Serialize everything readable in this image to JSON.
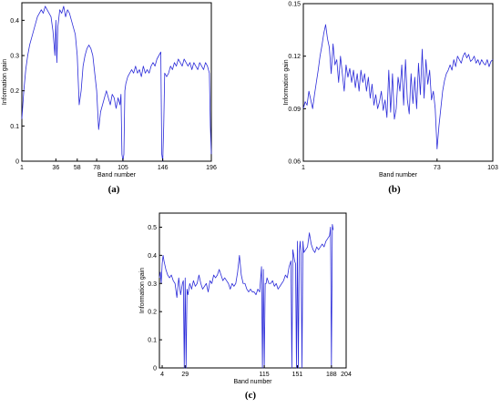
{
  "chart_data": [
    {
      "type": "line",
      "panel_label": "(a)",
      "xlabel": "Band number",
      "ylabel": "Information gain",
      "xlim": [
        1,
        196
      ],
      "ylim": [
        0,
        0.45
      ],
      "xticks": [
        1,
        36,
        58,
        78,
        105,
        146,
        196
      ],
      "yticks": [
        0,
        0.1,
        0.2,
        0.3,
        0.4
      ],
      "ytick_labels": [
        "0",
        "0.1",
        "0.2",
        "0.3",
        "0.4"
      ],
      "grid": false,
      "color": "#2b2bd9",
      "x": [
        1,
        3,
        5,
        7,
        9,
        11,
        13,
        15,
        17,
        19,
        21,
        23,
        25,
        27,
        29,
        31,
        33,
        35,
        36,
        37,
        38,
        40,
        42,
        44,
        46,
        48,
        50,
        52,
        54,
        56,
        58,
        60,
        62,
        64,
        66,
        68,
        70,
        72,
        74,
        76,
        78,
        80,
        82,
        84,
        86,
        88,
        90,
        92,
        94,
        96,
        98,
        100,
        102,
        103,
        104,
        105,
        106,
        107,
        108,
        110,
        112,
        114,
        116,
        118,
        120,
        122,
        124,
        126,
        128,
        130,
        132,
        134,
        136,
        138,
        140,
        142,
        144,
        145,
        146,
        147,
        148,
        150,
        152,
        154,
        156,
        158,
        160,
        162,
        164,
        166,
        168,
        170,
        172,
        174,
        176,
        178,
        180,
        182,
        184,
        186,
        188,
        190,
        192,
        194,
        195,
        196
      ],
      "values": [
        0.12,
        0.2,
        0.26,
        0.3,
        0.33,
        0.35,
        0.37,
        0.39,
        0.41,
        0.42,
        0.43,
        0.42,
        0.44,
        0.43,
        0.42,
        0.41,
        0.37,
        0.3,
        0.4,
        0.28,
        0.38,
        0.43,
        0.42,
        0.44,
        0.41,
        0.43,
        0.42,
        0.4,
        0.38,
        0.36,
        0.3,
        0.16,
        0.2,
        0.27,
        0.3,
        0.32,
        0.33,
        0.32,
        0.3,
        0.25,
        0.2,
        0.09,
        0.14,
        0.16,
        0.18,
        0.2,
        0.18,
        0.16,
        0.19,
        0.18,
        0.15,
        0.18,
        0.16,
        0.19,
        0.02,
        0.0,
        0.02,
        0.2,
        0.22,
        0.24,
        0.25,
        0.26,
        0.25,
        0.27,
        0.25,
        0.26,
        0.24,
        0.27,
        0.25,
        0.26,
        0.25,
        0.27,
        0.28,
        0.27,
        0.29,
        0.3,
        0.31,
        0.02,
        0.0,
        0.1,
        0.25,
        0.24,
        0.25,
        0.27,
        0.26,
        0.28,
        0.27,
        0.29,
        0.28,
        0.27,
        0.29,
        0.28,
        0.27,
        0.28,
        0.26,
        0.28,
        0.27,
        0.26,
        0.28,
        0.27,
        0.26,
        0.28,
        0.27,
        0.25,
        0.1,
        0.02
      ]
    },
    {
      "type": "line",
      "panel_label": "(b)",
      "xlabel": "Band number",
      "ylabel": "Information gain",
      "xlim": [
        1,
        103
      ],
      "ylim": [
        0.06,
        0.15
      ],
      "xticks": [
        1,
        73,
        103
      ],
      "yticks": [
        0.06,
        0.09,
        0.12,
        0.15
      ],
      "ytick_labels": [
        "0.06",
        "0.09",
        "0.12",
        "0.15"
      ],
      "grid": false,
      "color": "#2b2bd9",
      "x": [
        1,
        2,
        3,
        4,
        5,
        6,
        7,
        8,
        9,
        10,
        11,
        12,
        13,
        14,
        15,
        16,
        17,
        18,
        19,
        20,
        21,
        22,
        23,
        24,
        25,
        26,
        27,
        28,
        29,
        30,
        31,
        32,
        33,
        34,
        35,
        36,
        37,
        38,
        39,
        40,
        41,
        42,
        43,
        44,
        45,
        46,
        47,
        48,
        49,
        50,
        51,
        52,
        53,
        54,
        55,
        56,
        57,
        58,
        59,
        60,
        61,
        62,
        63,
        64,
        65,
        66,
        67,
        68,
        69,
        70,
        71,
        72,
        73,
        74,
        75,
        76,
        77,
        78,
        79,
        80,
        81,
        82,
        83,
        84,
        85,
        86,
        87,
        88,
        89,
        90,
        91,
        92,
        93,
        94,
        95,
        96,
        97,
        98,
        99,
        100,
        101,
        102,
        103
      ],
      "values": [
        0.09,
        0.094,
        0.092,
        0.1,
        0.095,
        0.09,
        0.098,
        0.105,
        0.112,
        0.12,
        0.126,
        0.133,
        0.138,
        0.13,
        0.125,
        0.11,
        0.127,
        0.115,
        0.118,
        0.105,
        0.12,
        0.11,
        0.1,
        0.115,
        0.108,
        0.113,
        0.105,
        0.112,
        0.102,
        0.11,
        0.1,
        0.112,
        0.105,
        0.11,
        0.1,
        0.108,
        0.096,
        0.104,
        0.092,
        0.098,
        0.09,
        0.094,
        0.1,
        0.089,
        0.095,
        0.085,
        0.112,
        0.088,
        0.11,
        0.084,
        0.09,
        0.108,
        0.1,
        0.115,
        0.092,
        0.118,
        0.095,
        0.087,
        0.11,
        0.093,
        0.108,
        0.09,
        0.116,
        0.098,
        0.124,
        0.096,
        0.118,
        0.104,
        0.112,
        0.095,
        0.1,
        0.09,
        0.067,
        0.08,
        0.09,
        0.1,
        0.106,
        0.11,
        0.112,
        0.115,
        0.112,
        0.118,
        0.114,
        0.12,
        0.118,
        0.116,
        0.12,
        0.122,
        0.119,
        0.121,
        0.117,
        0.118,
        0.12,
        0.116,
        0.118,
        0.115,
        0.118,
        0.116,
        0.115,
        0.118,
        0.114,
        0.117,
        0.118
      ]
    },
    {
      "type": "line",
      "panel_label": "(c)",
      "xlabel": "Band number",
      "ylabel": "Information gain",
      "xlim": [
        1,
        204
      ],
      "ylim": [
        0,
        0.55
      ],
      "xticks": [
        4,
        29,
        115,
        151,
        188,
        204
      ],
      "yticks": [
        0,
        0.1,
        0.2,
        0.3,
        0.4,
        0.5
      ],
      "ytick_labels": [
        "0",
        "0.1",
        "0.2",
        "0.3",
        "0.4",
        "0.5"
      ],
      "grid": false,
      "color": "#2b2bd9",
      "x": [
        1,
        2,
        3,
        4,
        5,
        6,
        8,
        10,
        12,
        14,
        16,
        18,
        20,
        22,
        24,
        26,
        27,
        28,
        29,
        30,
        31,
        32,
        34,
        36,
        38,
        40,
        42,
        44,
        46,
        48,
        50,
        52,
        54,
        56,
        58,
        60,
        62,
        64,
        66,
        68,
        70,
        72,
        74,
        76,
        78,
        80,
        82,
        84,
        86,
        88,
        90,
        92,
        94,
        96,
        98,
        100,
        102,
        104,
        106,
        108,
        110,
        112,
        113,
        114,
        115,
        116,
        117,
        118,
        120,
        122,
        124,
        126,
        128,
        130,
        132,
        134,
        136,
        138,
        140,
        142,
        144,
        145,
        146,
        147,
        148,
        149,
        150,
        151,
        152,
        153,
        154,
        155,
        156,
        157,
        158,
        160,
        162,
        164,
        166,
        168,
        170,
        172,
        174,
        176,
        178,
        180,
        182,
        184,
        186,
        187,
        188,
        189,
        190
      ],
      "values": [
        0.32,
        0.34,
        0.3,
        0.37,
        0.4,
        0.38,
        0.35,
        0.33,
        0.32,
        0.33,
        0.31,
        0.3,
        0.25,
        0.32,
        0.26,
        0.3,
        0.31,
        0.0,
        0.32,
        0.0,
        0.28,
        0.26,
        0.3,
        0.28,
        0.31,
        0.29,
        0.3,
        0.33,
        0.3,
        0.28,
        0.29,
        0.3,
        0.27,
        0.31,
        0.3,
        0.33,
        0.32,
        0.33,
        0.35,
        0.33,
        0.31,
        0.32,
        0.31,
        0.3,
        0.28,
        0.3,
        0.29,
        0.3,
        0.34,
        0.4,
        0.33,
        0.3,
        0.3,
        0.28,
        0.27,
        0.28,
        0.27,
        0.27,
        0.26,
        0.28,
        0.27,
        0.36,
        0.0,
        0.35,
        0.0,
        0.3,
        0.3,
        0.32,
        0.3,
        0.3,
        0.31,
        0.29,
        0.3,
        0.28,
        0.29,
        0.3,
        0.31,
        0.33,
        0.32,
        0.36,
        0.38,
        0.0,
        0.42,
        0.4,
        0.38,
        0.37,
        0.0,
        0.45,
        0.0,
        0.41,
        0.45,
        0.4,
        0.0,
        0.45,
        0.41,
        0.42,
        0.43,
        0.48,
        0.44,
        0.42,
        0.41,
        0.43,
        0.42,
        0.43,
        0.44,
        0.43,
        0.45,
        0.46,
        0.47,
        0.5,
        0.0,
        0.51,
        0.49
      ]
    }
  ]
}
